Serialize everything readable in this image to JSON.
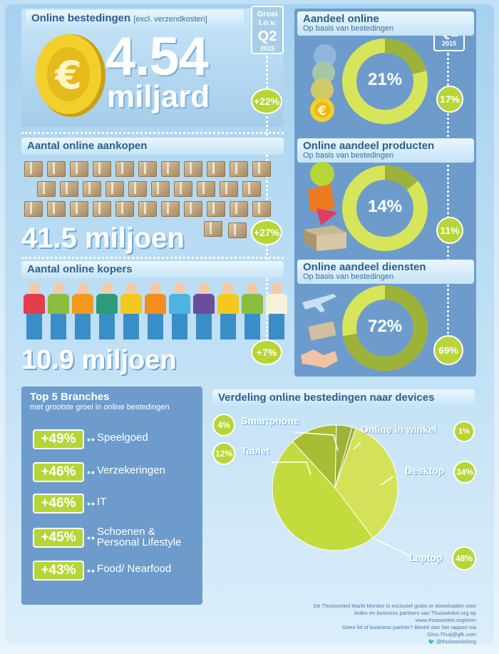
{
  "spend": {
    "title": "Online bestedingen",
    "note": "[excl. verzendkosten]",
    "value": "4.54",
    "unit": "miljard",
    "growth": "+22%"
  },
  "growth_tag": {
    "line1": "Groei",
    "line2": "t.o.v.",
    "line3": "Q2",
    "line4": "2015"
  },
  "purchases": {
    "title": "Aantal online aankopen",
    "value": "41.5 miljoen",
    "growth": "+27%"
  },
  "buyers": {
    "title": "Aantal online kopers",
    "value": "10.9 miljoen",
    "growth": "+7%"
  },
  "q2_tag": {
    "line1": "Q2",
    "line2": "2015"
  },
  "share_online": {
    "title": "Aandeel online",
    "subtitle": "Op basis van bestedingen",
    "value": "21%",
    "previous": "17%",
    "share": 0.21
  },
  "share_products": {
    "title": "Online aandeel producten",
    "subtitle": "Op basis van bestedingen",
    "value": "14%",
    "previous": "11%",
    "share": 0.14
  },
  "share_services": {
    "title": "Online aandeel diensten",
    "subtitle": "Op basis van bestedingen",
    "value": "72%",
    "previous": "69%",
    "share": 0.72
  },
  "top5": {
    "title": "Top 5 Branches",
    "subtitle": "met grootste groei in online bestedingen",
    "items": [
      {
        "pct": "+49%",
        "label": "Speelgoed"
      },
      {
        "pct": "+46%",
        "label": "Verzekeringen"
      },
      {
        "pct": "+46%",
        "label": "IT"
      },
      {
        "pct": "+45%",
        "label": "Schoenen &",
        "label2": "Personal Lifestyle"
      },
      {
        "pct": "+43%",
        "label": "Food/ Nearfood"
      }
    ]
  },
  "devices": {
    "title": "Verdeling online bestedingen naar devices"
  },
  "chart_data": {
    "type": "pie",
    "title": "Verdeling online bestedingen naar devices",
    "categories": [
      "Smartphone",
      "Online in winkel",
      "Desktop",
      "Laptop",
      "Tablet"
    ],
    "values": [
      4,
      1,
      34,
      48,
      12
    ],
    "labels": [
      "4%",
      "1%",
      "34%",
      "48%",
      "12%"
    ],
    "colors": [
      "#9db238",
      "#9db238",
      "#d4e25a",
      "#c3db3c",
      "#a8bd33"
    ]
  },
  "footer": {
    "line1": "De Thuiswinkel Markt Monitor is exclusief gratis te downloaden voor",
    "line2": "leden en business partners van Thuiswinkel.org op www.thuiswinkel.org/tmm",
    "line3": "Geen lid of business partner? Bestel dan het rapport via Gino.Thuij@gfk.com",
    "line4": "@thuiswinkelorg"
  },
  "colors": {
    "accent_green": "#b6d537",
    "panel_blue": "#6d9ccc",
    "light_blue": "#c5e4f7"
  }
}
